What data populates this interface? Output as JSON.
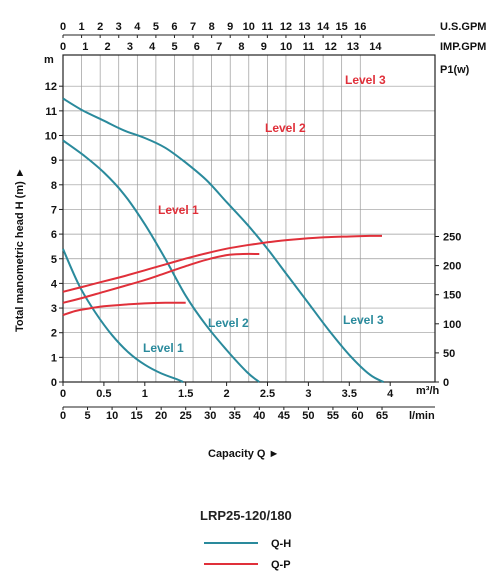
{
  "chart_data": {
    "type": "line",
    "title": "LRP25-120/180",
    "xlabel": "Capacity Q ►",
    "ylabel": "Total manometric head H (m) ►",
    "y2label": "P1(w)",
    "y_unit": "m",
    "xlim": [
      0,
      4.2
    ],
    "ylim": [
      0,
      12.4
    ],
    "y2lim": [
      0,
      265
    ],
    "grid": true,
    "x_ticks_m3h": {
      "values": [
        0,
        0.5,
        1,
        1.5,
        2,
        2.5,
        3,
        3.5,
        4
      ],
      "labels": [
        "0",
        "0.5",
        "1",
        "1.5",
        "2",
        "2.5",
        "3",
        "3.5",
        "4"
      ],
      "unit": "m³/h"
    },
    "x_ticks_lmin": {
      "values": [
        0,
        5,
        10,
        15,
        20,
        25,
        30,
        35,
        40,
        45,
        50,
        55,
        60,
        65
      ],
      "unit": "l/min",
      "unit_label": "l/min"
    },
    "x_ticks_usgpm": {
      "values": [
        0,
        1,
        2,
        3,
        4,
        5,
        6,
        7,
        8,
        9,
        10,
        11,
        12,
        13,
        14,
        15,
        16
      ],
      "unit": "U.S.GPM"
    },
    "x_ticks_impgpm": {
      "values": [
        0,
        1,
        2,
        3,
        4,
        5,
        6,
        7,
        8,
        9,
        10,
        11,
        12,
        13,
        14
      ],
      "unit": "IMP.GPM"
    },
    "y_ticks": [
      0,
      1,
      2,
      3,
      4,
      5,
      6,
      7,
      8,
      9,
      10,
      11,
      12
    ],
    "y2_ticks": [
      0,
      50,
      100,
      150,
      200,
      250
    ],
    "legend": {
      "title": "LRP25-120/180",
      "placement": "bottom-center",
      "entries": [
        {
          "name": "Q-H",
          "color": "#2a8a9c"
        },
        {
          "name": "Q-P",
          "color": "#e0303a"
        }
      ]
    },
    "series_qh": [
      {
        "name": "Level 1",
        "x": [
          0,
          0.2,
          0.4,
          0.6,
          0.8,
          1.0,
          1.2,
          1.4,
          1.47
        ],
        "y": [
          5.4,
          3.9,
          2.8,
          1.9,
          1.2,
          0.7,
          0.35,
          0.1,
          0
        ]
      },
      {
        "name": "Level 2",
        "x": [
          0,
          0.25,
          0.5,
          0.75,
          1.0,
          1.25,
          1.5,
          1.75,
          2.0,
          2.25,
          2.4
        ],
        "y": [
          9.8,
          9.2,
          8.5,
          7.6,
          6.4,
          5.0,
          3.5,
          2.3,
          1.3,
          0.4,
          0
        ]
      },
      {
        "name": "Level 3",
        "x": [
          0,
          0.25,
          0.5,
          0.75,
          1.0,
          1.25,
          1.5,
          1.75,
          2.0,
          2.25,
          2.5,
          2.75,
          3.0,
          3.25,
          3.5,
          3.75,
          3.92
        ],
        "y": [
          11.5,
          11.0,
          10.6,
          10.2,
          9.9,
          9.5,
          8.9,
          8.2,
          7.3,
          6.4,
          5.4,
          4.3,
          3.2,
          2.1,
          1.1,
          0.3,
          0
        ]
      }
    ],
    "series_qp": [
      {
        "name": "Level 1",
        "x": [
          0,
          0.15,
          0.3,
          0.5,
          0.75,
          1.0,
          1.25,
          1.5
        ],
        "y": [
          115,
          122,
          126,
          130,
          133,
          135,
          136,
          136
        ]
      },
      {
        "name": "Level 2",
        "x": [
          0,
          0.25,
          0.5,
          0.75,
          1.0,
          1.25,
          1.5,
          1.75,
          2.0,
          2.2,
          2.4
        ],
        "y": [
          136,
          145,
          155,
          165,
          175,
          187,
          199,
          210,
          218,
          220,
          220
        ]
      },
      {
        "name": "Level 3",
        "x": [
          0,
          0.25,
          0.5,
          0.75,
          1.0,
          1.25,
          1.5,
          1.75,
          2.0,
          2.25,
          2.5,
          2.75,
          3.0,
          3.25,
          3.5,
          3.75,
          3.9
        ],
        "y": [
          155,
          164,
          173,
          182,
          192,
          202,
          212,
          221,
          229,
          235,
          240,
          244,
          247,
          249,
          250,
          251,
          251
        ]
      }
    ]
  }
}
